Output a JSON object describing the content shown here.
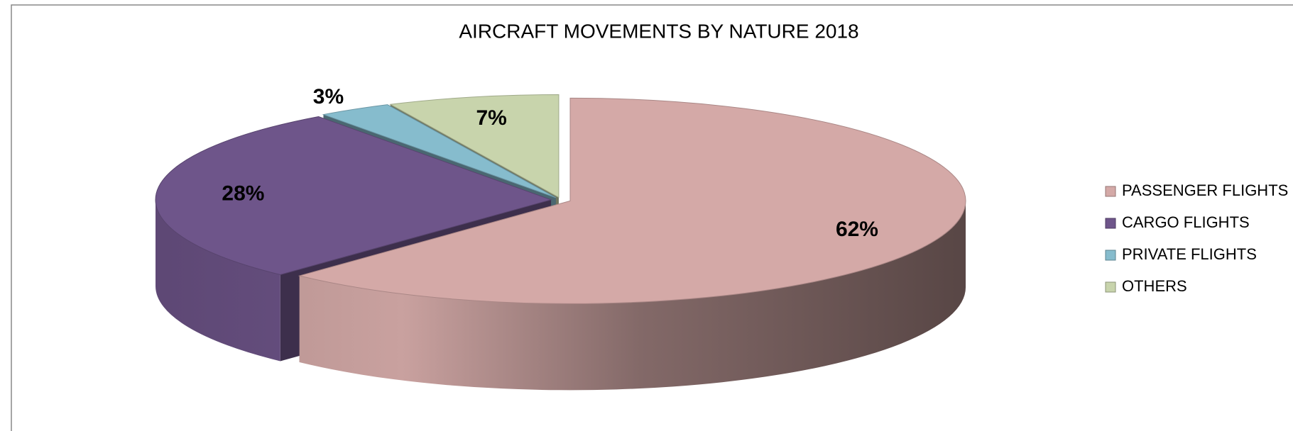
{
  "chart_data": {
    "type": "pie",
    "title": "AIRCRAFT MOVEMENTS BY NATURE 2018",
    "categories": [
      "PASSENGER FLIGHTS",
      "CARGO FLIGHTS",
      "PRIVATE  FLIGHTS",
      "OTHERS"
    ],
    "values": [
      62,
      28,
      3,
      7
    ],
    "value_labels": [
      "62%",
      "28%",
      "3%",
      "7%"
    ],
    "colors": [
      "#d4a9a7",
      "#6e558a",
      "#86bccd",
      "#c8d4ac"
    ],
    "legend": "right"
  }
}
